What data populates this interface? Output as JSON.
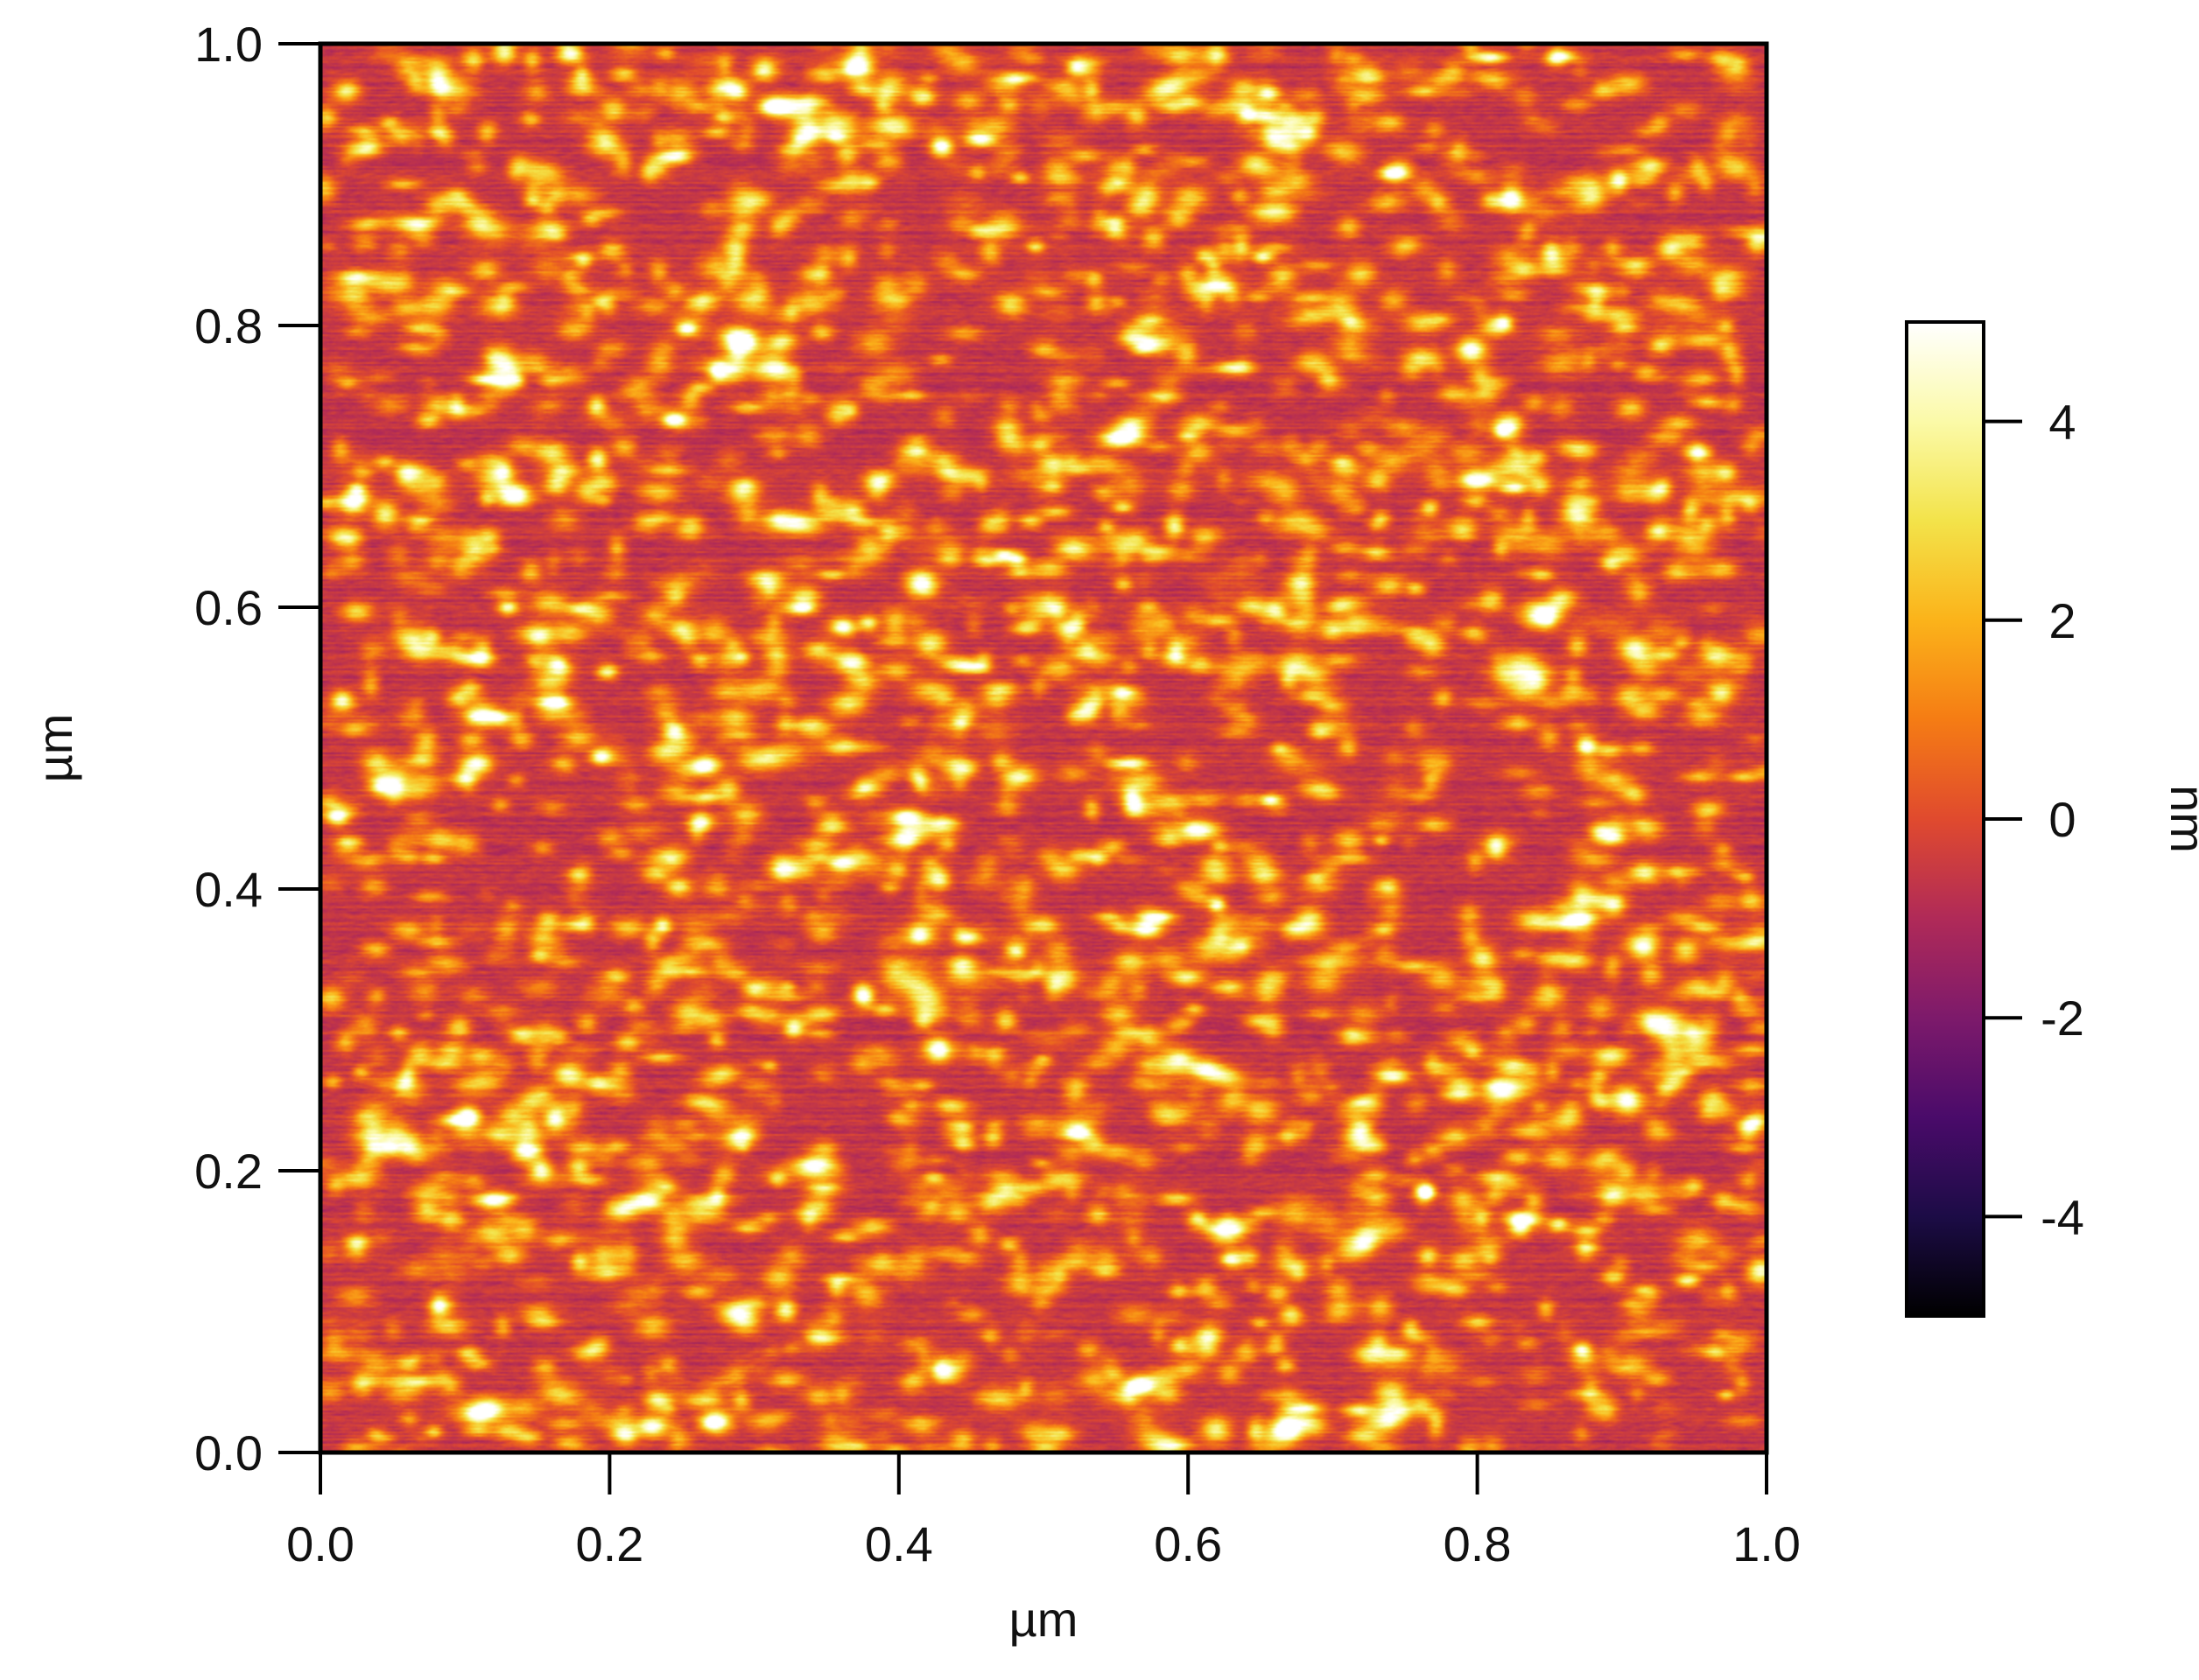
{
  "chart_data": {
    "type": "heatmap",
    "title": "",
    "xlabel": "µm",
    "ylabel": "µm",
    "xlim": [
      0.0,
      1.0
    ],
    "ylim": [
      0.0,
      1.0
    ],
    "x_ticks": [
      "0.0",
      "0.2",
      "0.4",
      "0.6",
      "0.8",
      "1.0"
    ],
    "y_ticks": [
      "0.0",
      "0.2",
      "0.4",
      "0.6",
      "0.8",
      "1.0"
    ],
    "colorbar": {
      "label": "nm",
      "range": [
        -5,
        5
      ],
      "ticks": [
        "-4",
        "-2",
        "0",
        "2",
        "4"
      ],
      "colormap": [
        "#000000",
        "#1c0c46",
        "#4a0b6a",
        "#7d1a6b",
        "#b02a58",
        "#e04a2e",
        "#f57c14",
        "#fbb31a",
        "#f3e34a",
        "#fbfaa8",
        "#ffffff"
      ]
    },
    "surface": {
      "description_values": "height map of a granular film with roughly uniform nanoscale grains",
      "background_height_nm": [
        -1.5,
        1.0
      ],
      "grain_height_nm": [
        1.5,
        4.5
      ]
    },
    "grid": false,
    "legend": "right"
  }
}
